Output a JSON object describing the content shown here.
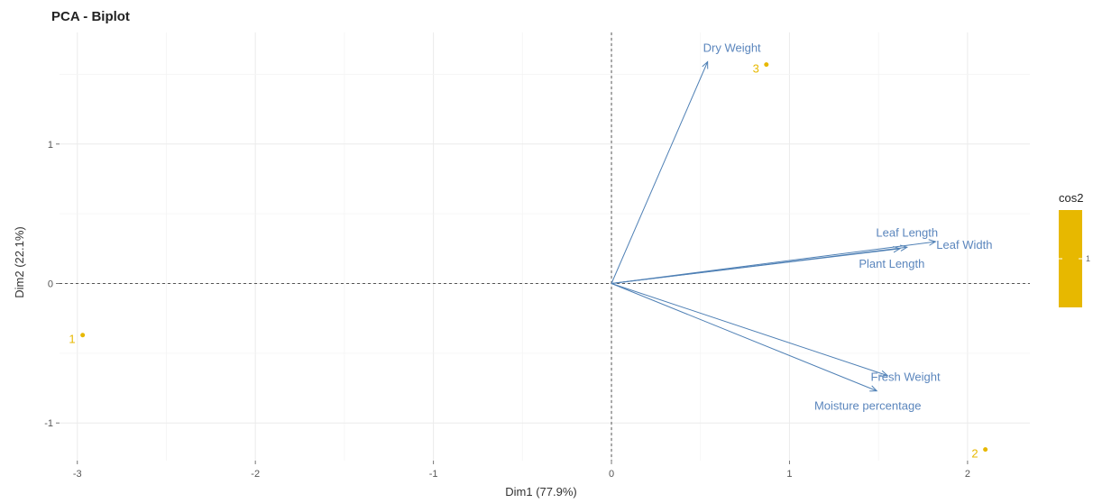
{
  "chart_data": {
    "type": "scatter",
    "title": "PCA - Biplot",
    "xlabel": "Dim1 (77.9%)",
    "ylabel": "Dim2 (22.1%)",
    "xlim": [
      -3.1,
      2.35
    ],
    "ylim": [
      -1.27,
      1.8
    ],
    "xticks": [
      -3,
      -2,
      -1,
      0,
      1,
      2
    ],
    "yticks": [
      -1,
      0,
      1
    ],
    "grid": true,
    "individuals": [
      {
        "label": "1",
        "x": -2.97,
        "y": -0.37
      },
      {
        "label": "2",
        "x": 2.1,
        "y": -1.19
      },
      {
        "label": "3",
        "x": 0.87,
        "y": 1.57
      }
    ],
    "variables": [
      {
        "label": "Dry Weight",
        "x": 0.54,
        "y": 1.59
      },
      {
        "label": "Leaf Length",
        "x": 1.66,
        "y": 0.26
      },
      {
        "label": "Leaf Width",
        "x": 1.82,
        "y": 0.3
      },
      {
        "label": "Plant Length",
        "x": 1.62,
        "y": 0.25
      },
      {
        "label": "Fresh Weight",
        "x": 1.55,
        "y": -0.66
      },
      {
        "label": "Moisture percentage",
        "x": 1.49,
        "y": -0.77
      }
    ],
    "legend": {
      "title": "cos2",
      "tick_label": "1",
      "position": "right"
    },
    "colors": {
      "points": "#e7b800",
      "arrows": "#4f80b5",
      "var_text": "#5b86bd",
      "grid": "#ebebeb",
      "reference": "#555555"
    }
  }
}
